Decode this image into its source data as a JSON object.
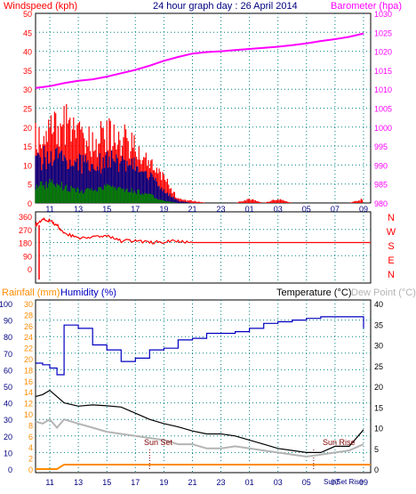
{
  "colors": {
    "red": "#ff0000",
    "magenta": "#ff00ff",
    "navy": "#000080",
    "blue": "#0000c0",
    "green": "#008000",
    "orange": "#ff8c00",
    "black": "#000000",
    "gray": "#b4b4b4",
    "grid": "#008080"
  },
  "header": {
    "windspeed_title": "Windspeed (kph)",
    "graph_title": "24 hour graph day : 26 April 2014",
    "barometer_title": "Barometer (hpa)"
  },
  "x_tick_labels": [
    "11",
    "13",
    "15",
    "17",
    "19",
    "21",
    "23",
    "01",
    "03",
    "05",
    "07",
    "09"
  ],
  "panels": {
    "wind": {
      "left_ticks": [
        "50",
        "45",
        "40",
        "35",
        "30",
        "25",
        "20",
        "15",
        "10",
        "5",
        "0"
      ],
      "right_ticks": [
        "1030",
        "1025",
        "1020",
        "1015",
        "1010",
        "1005",
        "1000",
        "995",
        "990",
        "985",
        "980"
      ]
    },
    "direction": {
      "left_ticks": [
        "360",
        "270",
        "180",
        "90",
        "0"
      ],
      "compass_labels": [
        "N",
        "W",
        "S",
        "E",
        "N"
      ]
    },
    "temp": {
      "rainfall_title": "Rainfall (mm)",
      "humidity_title": "Humidity (%)",
      "temperature_title": "Temperature (°C)",
      "dewpoint_title": "Dew Point (°C)",
      "humidity_ticks": [
        "100",
        "90",
        "80",
        "70",
        "60",
        "50",
        "40",
        "30",
        "20",
        "10",
        "0"
      ],
      "rainfall_ticks": [
        "30",
        "28",
        "26",
        "24",
        "22",
        "20",
        "18",
        "16",
        "14",
        "12",
        "10",
        "8",
        "6",
        "4",
        "2",
        "0"
      ],
      "temp_ticks": [
        "40",
        "35",
        "30",
        "25",
        "20",
        "15",
        "10",
        "5",
        "0"
      ],
      "sun_set_label": "Sun Set",
      "sun_rise_label": "Sun Rise",
      "bottom_sun_labels": "SunSet Rise"
    }
  },
  "chart_data": [
    {
      "type": "line",
      "name": "windspeed-barometer",
      "x": [
        "10:00",
        "11:00",
        "12:00",
        "13:00",
        "14:00",
        "15:00",
        "16:00",
        "17:00",
        "18:00",
        "19:00",
        "20:00",
        "21:00",
        "22:00",
        "23:00",
        "00:00",
        "01:00",
        "02:00",
        "03:00",
        "04:00",
        "05:00",
        "06:00",
        "07:00",
        "08:00",
        "09:00"
      ],
      "series": [
        {
          "axis": "barometer",
          "values": [
            1010.3,
            1010.8,
            1011.6,
            1012.2,
            1012.6,
            1013.3,
            1014.2,
            1015.1,
            1016.2,
            1017.5,
            1018.5,
            1019.4,
            1019.8,
            1020.0,
            1020.3,
            1020.6,
            1020.9,
            1021.2,
            1021.6,
            1022.1,
            1022.7,
            1023.2,
            1023.8,
            1024.7
          ]
        },
        {
          "axis": "windspeed",
          "values": [
            16,
            18,
            20,
            16,
            15,
            17,
            16,
            14,
            10,
            6,
            1,
            0.5,
            0,
            0,
            0,
            1,
            0,
            1,
            0,
            0,
            0,
            0,
            0,
            1
          ]
        },
        {
          "axis": "windspeed",
          "values": [
            10,
            12,
            11,
            10,
            9,
            11,
            10,
            9,
            7,
            3,
            0.5,
            0,
            0,
            0,
            0,
            0,
            0,
            0,
            0,
            0,
            0,
            0,
            0,
            0
          ]
        },
        {
          "axis": "windspeed",
          "values": [
            4,
            5,
            4,
            3,
            3,
            4,
            3,
            3,
            2,
            0.5,
            0,
            0,
            0,
            0,
            0,
            0,
            0,
            0,
            0,
            0,
            0,
            0,
            0,
            0
          ]
        }
      ],
      "ylim": [
        0,
        50
      ],
      "y2lim": [
        980,
        1030
      ]
    },
    {
      "type": "line",
      "name": "wind-direction",
      "x": [
        "10:00",
        "10:30",
        "11:00",
        "11:30",
        "12:00",
        "13:00",
        "14:00",
        "15:00",
        "16:00",
        "17:00",
        "18:00",
        "19:00",
        "20:00",
        "21:00",
        "23:00",
        "01:00",
        "03:00",
        "05:00",
        "07:00",
        "09:00"
      ],
      "series": [
        {
          "values": [
            300,
            340,
            330,
            300,
            240,
            215,
            215,
            225,
            190,
            195,
            180,
            185,
            190,
            180,
            180,
            180,
            180,
            180,
            180,
            180
          ]
        }
      ],
      "ylim": [
        0,
        360
      ]
    },
    {
      "type": "line",
      "name": "temperature-humidity-rainfall",
      "x": [
        "10:00",
        "10:30",
        "11:00",
        "11:30",
        "12:00",
        "13:00",
        "14:00",
        "15:00",
        "16:00",
        "17:00",
        "18:00",
        "19:00",
        "20:00",
        "21:00",
        "22:00",
        "23:00",
        "00:00",
        "01:00",
        "02:00",
        "03:00",
        "04:00",
        "05:00",
        "06:00",
        "07:00",
        "08:00",
        "09:00"
      ],
      "series": [
        {
          "axis": "humidity",
          "values": [
            64,
            63,
            61,
            57,
            87,
            85,
            75,
            72,
            65,
            67,
            72,
            73,
            78,
            79,
            82,
            82,
            83,
            85,
            88,
            89,
            90,
            91,
            92,
            92,
            92,
            85
          ]
        },
        {
          "axis": "temperature",
          "values": [
            17.5,
            18,
            19,
            17.5,
            16,
            15.2,
            15.5,
            15.3,
            15.0,
            13.5,
            12,
            11,
            10.2,
            9.2,
            8.5,
            8.5,
            8,
            7,
            6,
            5,
            4.5,
            4,
            4,
            5.5,
            5.5,
            9.5
          ]
        },
        {
          "axis": "temperature",
          "values": [
            11.5,
            11,
            12,
            10,
            12,
            11,
            10,
            9,
            8.5,
            8,
            7.5,
            7,
            6,
            6,
            5,
            5,
            5.5,
            5,
            4.5,
            4,
            3.5,
            3,
            3.5,
            4,
            4.5,
            6
          ]
        },
        {
          "axis": "rainfall",
          "values": [
            0,
            0,
            0,
            0,
            0.8,
            0.8,
            0.8,
            0.8,
            0.8,
            0.8,
            0.8,
            0.8,
            0.8,
            0.8,
            0.8,
            0.8,
            0.8,
            0.8,
            0.8,
            0.8,
            0.8,
            0.8,
            0.8,
            0.8,
            0.8,
            0.8
          ]
        }
      ],
      "ylim": [
        0,
        100
      ],
      "y2lim": [
        0,
        40
      ],
      "y3lim": [
        0,
        30
      ]
    }
  ]
}
